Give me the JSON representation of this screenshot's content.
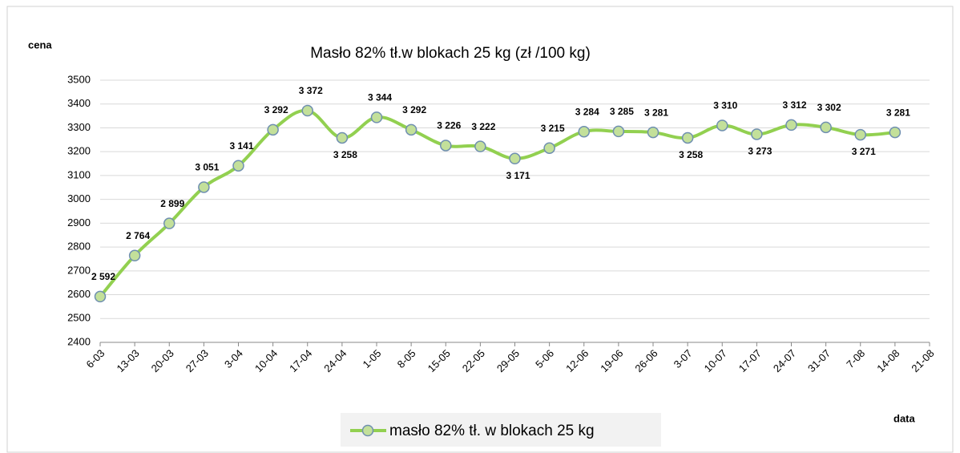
{
  "chart_data": {
    "type": "line",
    "title": "Masło 82% tł.w blokach 25 kg (zł /100 kg)",
    "y_label": "cena",
    "x_label": "data",
    "categories": [
      "6-03",
      "13-03",
      "20-03",
      "27-03",
      "3-04",
      "10-04",
      "17-04",
      "24-04",
      "1-05",
      "8-05",
      "15-05",
      "22-05",
      "29-05",
      "5-06",
      "12-06",
      "19-06",
      "26-06",
      "3-07",
      "10-07",
      "17-07",
      "24-07",
      "31-07",
      "7-08",
      "14-08",
      "21-08"
    ],
    "series": [
      {
        "name": "masło 82% tł. w blokach 25 kg",
        "color": "#92d050",
        "values": [
          2592,
          2764,
          2899,
          3051,
          3141,
          3292,
          3372,
          3258,
          3344,
          3292,
          3226,
          3222,
          3171,
          3215,
          3284,
          3285,
          3281,
          3258,
          3310,
          3273,
          3312,
          3302,
          3271,
          3281,
          null
        ],
        "value_labels": [
          "2 592",
          "2 764",
          "2 899",
          "3 051",
          "3 141",
          "3 292",
          "3 372",
          "3 258",
          "3 344",
          "3 292",
          "3 226",
          "3 222",
          "3 171",
          "3 215",
          "3 284",
          "3 285",
          "3 281",
          "3 258",
          "3 310",
          "3 273",
          "3 312",
          "3 302",
          "3 271",
          "3 281",
          null
        ]
      }
    ],
    "ylim": [
      2400,
      3500
    ],
    "yticks": [
      2400,
      2500,
      2600,
      2700,
      2800,
      2900,
      3000,
      3100,
      3200,
      3300,
      3400,
      3500
    ],
    "grid": true,
    "legend": "bottom"
  }
}
